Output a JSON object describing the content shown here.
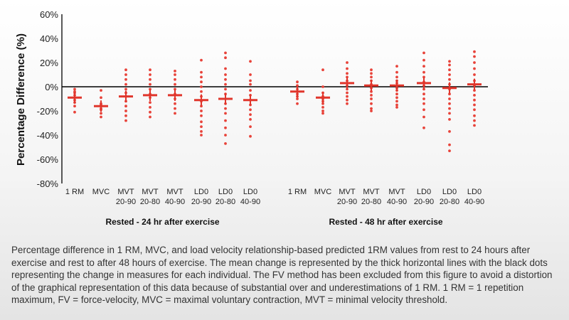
{
  "chart_data": {
    "type": "scatter",
    "ylabel": "Percentage Difference (%)",
    "yticks": [
      "60%",
      "40%",
      "20%",
      "0%",
      "-20%",
      "-40%",
      "-60%",
      "-80%"
    ],
    "ylim": [
      -80,
      60
    ],
    "groups": [
      {
        "label": "Rested - 24 hr after exercise",
        "categories": [
          {
            "line1": "1 RM",
            "line2": "",
            "mean": -9,
            "points": [
              -2,
              -4,
              -5,
              -7,
              -9,
              -11,
              -13,
              -16,
              -21
            ]
          },
          {
            "line1": "MVC",
            "line2": "",
            "mean": -16,
            "points": [
              -3,
              -9,
              -14,
              -15,
              -16,
              -18,
              -19,
              -22,
              -25
            ]
          },
          {
            "line1": "MVT",
            "line2": "20-90",
            "mean": -8,
            "points": [
              14,
              10,
              6,
              2,
              -2,
              -5,
              -8,
              -12,
              -16,
              -20,
              -24,
              -28
            ]
          },
          {
            "line1": "MVT",
            "line2": "20-80",
            "mean": -7,
            "points": [
              14,
              10,
              6,
              2,
              -2,
              -6,
              -9,
              -13,
              -17,
              -21,
              -25
            ]
          },
          {
            "line1": "MVT",
            "line2": "40-90",
            "mean": -7,
            "points": [
              13,
              10,
              6,
              2,
              -2,
              -6,
              -10,
              -14,
              -18,
              -22
            ]
          },
          {
            "line1": "LD0",
            "line2": "20-90",
            "mean": -11,
            "points": [
              22,
              12,
              8,
              4,
              0,
              -4,
              -8,
              -12,
              -16,
              -20,
              -24,
              -29,
              -33,
              -37,
              -40
            ]
          },
          {
            "line1": "LD0",
            "line2": "20-80",
            "mean": -10,
            "points": [
              28,
              24,
              15,
              10,
              6,
              2,
              -2,
              -6,
              -10,
              -14,
              -18,
              -22,
              -28,
              -34,
              -40,
              -47
            ]
          },
          {
            "line1": "LD0",
            "line2": "40-90",
            "mean": -11,
            "points": [
              21,
              10,
              5,
              2,
              -3,
              -7,
              -11,
              -15,
              -19,
              -23,
              -27,
              -33,
              -41
            ]
          }
        ]
      },
      {
        "label": "Rested - 48 hr after exercise",
        "categories": [
          {
            "line1": "1 RM",
            "line2": "",
            "mean": -4,
            "points": [
              4,
              1,
              -2,
              -4,
              -6,
              -8,
              -10,
              -14
            ]
          },
          {
            "line1": "MVC",
            "line2": "",
            "mean": -9,
            "points": [
              14,
              0,
              -5,
              -8,
              -10,
              -12,
              -14,
              -17,
              -20,
              -22
            ]
          },
          {
            "line1": "MVT",
            "line2": "20-90",
            "mean": 3,
            "points": [
              20,
              15,
              11,
              8,
              5,
              3,
              1,
              -2,
              -5,
              -8,
              -11,
              -14
            ]
          },
          {
            "line1": "MVT",
            "line2": "20-80",
            "mean": 1,
            "points": [
              14,
              11,
              8,
              5,
              2,
              -1,
              -4,
              -7,
              -10,
              -14,
              -18,
              -20
            ]
          },
          {
            "line1": "MVT",
            "line2": "40-90",
            "mean": 1,
            "points": [
              17,
              12,
              8,
              5,
              3,
              1,
              -1,
              -3,
              -6,
              -9,
              -12,
              -15,
              -17
            ]
          },
          {
            "line1": "LD0",
            "line2": "20-90",
            "mean": 3,
            "points": [
              28,
              22,
              17,
              12,
              8,
              4,
              1,
              -2,
              -6,
              -10,
              -14,
              -19,
              -25,
              -34
            ]
          },
          {
            "line1": "LD0",
            "line2": "20-80",
            "mean": -1,
            "points": [
              21,
              18,
              14,
              10,
              6,
              2,
              -2,
              -6,
              -10,
              -14,
              -18,
              -22,
              -27,
              -37,
              -48,
              -53
            ]
          },
          {
            "line1": "LD0",
            "line2": "40-90",
            "mean": 2,
            "points": [
              29,
              25,
              20,
              15,
              10,
              5,
              1,
              -3,
              -7,
              -11,
              -15,
              -19,
              -24,
              -28,
              -32
            ]
          }
        ]
      }
    ]
  },
  "caption": "Percentage difference in 1 RM, MVC, and load velocity relationship-based predicted 1RM values from rest to 24 hours after exercise and rest to after 48 hours of exercise. The mean change is represented by the thick horizontal lines with the black dots representing the change in measures for each individual. The FV method has been excluded from this figure to avoid a distortion of the graphical representation of this data because of substantial over and underestimations of 1 RM. 1 RM = 1 repetition maximum, FV = force-velocity, MVC = maximal voluntary contraction, MVT = minimal velocity threshold.",
  "colors": {
    "points": "#e8433a",
    "mean": "#e0362c",
    "axis": "#000000"
  }
}
